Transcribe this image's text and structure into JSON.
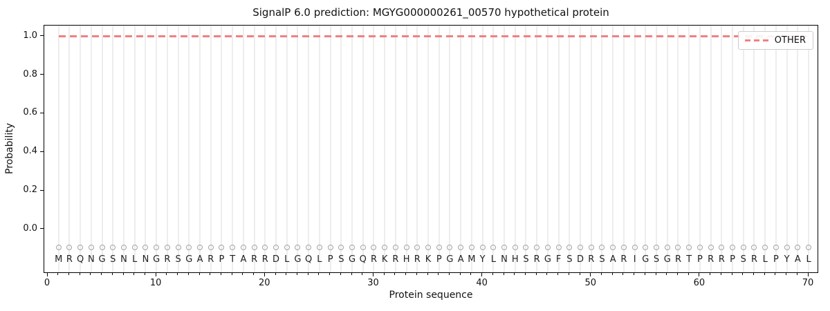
{
  "chart_data": {
    "type": "line",
    "title": "SignalP 6.0 prediction: MGYG000000261_00570 hypothetical protein",
    "xlabel": "Protein sequence",
    "ylabel": "Probability",
    "xlim": [
      -0.32,
      70.95
    ],
    "ylim": [
      -0.23,
      1.057
    ],
    "x_ticks": [
      0,
      10,
      20,
      30,
      40,
      50,
      60,
      70
    ],
    "y_ticks": [
      "0.0",
      "0.2",
      "0.4",
      "0.6",
      "0.8",
      "1.0"
    ],
    "grid": "vertical gridline at every residue position, no horizontal gridlines",
    "sequence": "MRQNGSNLNGRSGARPTARRDLGQLPSGQRKRHRKPGAMYLNHSRGFSDRSARIGSGRTPRRPSRLPYAL",
    "sequence_first_index": 1,
    "residue_markers": {
      "shape": "open-circle",
      "color": "#a3a3a3"
    },
    "legend": {
      "position": "upper-right",
      "entries": [
        {
          "label": "OTHER",
          "color": "#f08080",
          "style": "dashed"
        }
      ]
    },
    "series": [
      {
        "name": "OTHER",
        "style": "dashed",
        "color": "#f08080",
        "x": [
          1,
          2,
          3,
          4,
          5,
          6,
          7,
          8,
          9,
          10,
          11,
          12,
          13,
          14,
          15,
          16,
          17,
          18,
          19,
          20,
          21,
          22,
          23,
          24,
          25,
          26,
          27,
          28,
          29,
          30,
          31,
          32,
          33,
          34,
          35,
          36,
          37,
          38,
          39,
          40,
          41,
          42,
          43,
          44,
          45,
          46,
          47,
          48,
          49,
          50,
          51,
          52,
          53,
          54,
          55,
          56,
          57,
          58,
          59,
          60,
          61,
          62,
          63,
          64,
          65,
          66,
          67,
          68,
          69,
          70
        ],
        "values": [
          1.0,
          1.0,
          1.0,
          1.0,
          1.0,
          1.0,
          1.0,
          1.0,
          1.0,
          1.0,
          1.0,
          1.0,
          1.0,
          1.0,
          1.0,
          1.0,
          1.0,
          1.0,
          1.0,
          1.0,
          1.0,
          1.0,
          1.0,
          1.0,
          1.0,
          1.0,
          1.0,
          1.0,
          1.0,
          1.0,
          1.0,
          1.0,
          1.0,
          1.0,
          1.0,
          1.0,
          1.0,
          1.0,
          1.0,
          1.0,
          1.0,
          1.0,
          1.0,
          1.0,
          1.0,
          1.0,
          1.0,
          1.0,
          1.0,
          1.0,
          1.0,
          1.0,
          1.0,
          1.0,
          1.0,
          1.0,
          1.0,
          1.0,
          1.0,
          1.0,
          1.0,
          1.0,
          1.0,
          1.0,
          1.0,
          1.0,
          1.0,
          1.0,
          1.0,
          1.0
        ]
      }
    ]
  },
  "colors": {
    "line": "#f08080",
    "grid": "#ededed",
    "marker_stroke": "#a3a3a3",
    "axis": "#000000",
    "text": "#111111",
    "background": "#ffffff"
  }
}
